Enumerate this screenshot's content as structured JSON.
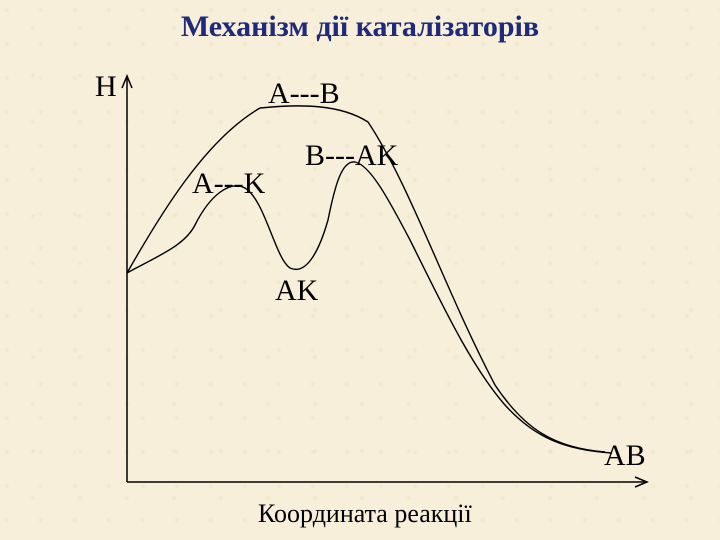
{
  "slide": {
    "title": "Механізм дії каталізаторів"
  },
  "diagram": {
    "y_axis_label": "H",
    "x_axis_label": "Координата реакції",
    "labels": {
      "uncatalyzed_transition_state": "A---B",
      "catalyst_complex": "A---K",
      "intermediate": "AK",
      "catalyzed_transition_state": "B---AK",
      "product": "AB"
    },
    "curves": [
      {
        "name": "uncatalyzed-path",
        "color": "#000000"
      },
      {
        "name": "catalyzed-path",
        "color": "#000000"
      }
    ]
  }
}
